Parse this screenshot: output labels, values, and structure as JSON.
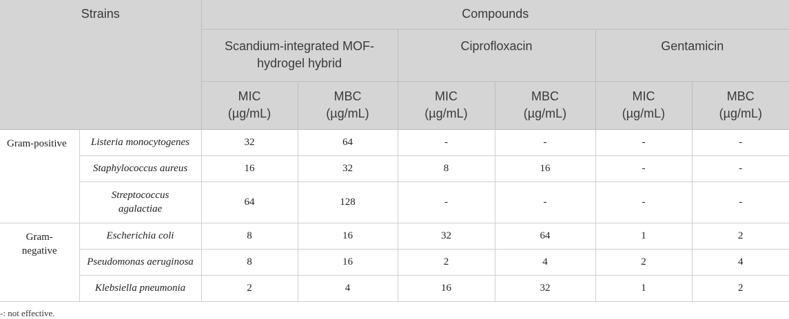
{
  "header": {
    "strains": "Strains",
    "compounds": "Compounds",
    "groups": [
      {
        "name": "Scandium-integrated MOF-hydrogel hybrid",
        "columns": [
          "MIC (µg/mL)",
          "MBC (µg/mL)"
        ]
      },
      {
        "name": "Ciprofloxacin",
        "columns": [
          "MIC (µg/mL)",
          "MBC (µg/mL)"
        ]
      },
      {
        "name": "Gentamicin",
        "columns": [
          "MIC (µg/mL)",
          "MBC (µg/mL)"
        ]
      }
    ]
  },
  "body": [
    {
      "group": "Gram-positive",
      "rows": [
        {
          "strain": "Listeria monocytogenes",
          "values": [
            32,
            64,
            "-",
            "-",
            "-",
            "-"
          ]
        },
        {
          "strain": "Staphylococcus aureus",
          "values": [
            16,
            32,
            8,
            16,
            "-",
            "-"
          ]
        },
        {
          "strain": "Streptococcus agalactiae",
          "values": [
            64,
            128,
            "-",
            "-",
            "-",
            "-"
          ]
        }
      ]
    },
    {
      "group": "Gram-negative",
      "rows": [
        {
          "strain": "Escherichia coli",
          "values": [
            8,
            16,
            32,
            64,
            1,
            2
          ]
        },
        {
          "strain": "Pseudomonas aeruginosa",
          "values": [
            8,
            16,
            2,
            4,
            2,
            4
          ]
        },
        {
          "strain": "Klebsiella pneumonia",
          "values": [
            2,
            4,
            16,
            32,
            1,
            2
          ]
        }
      ]
    }
  ],
  "footnote": "-: not effective."
}
